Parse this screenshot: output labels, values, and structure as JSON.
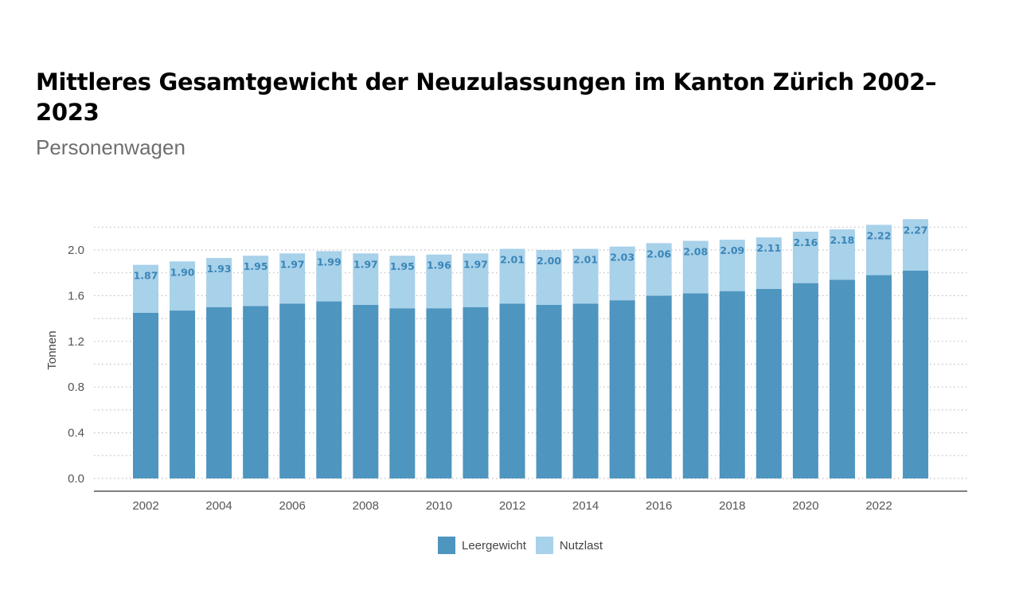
{
  "header": {
    "title": "Mittleres Gesamtgewicht der Neuzulassungen im Kanton Zürich 2002–2023",
    "subtitle": "Personenwagen"
  },
  "colors": {
    "leergewicht": "#4e95bf",
    "nutzlast": "#a8d1ea",
    "label": "#3a86b8",
    "grid": "#bdbdbd",
    "axis": "#555555"
  },
  "chart_data": {
    "type": "bar",
    "stacked": true,
    "title": "Mittleres Gesamtgewicht der Neuzulassungen im Kanton Zürich 2002–2023",
    "subtitle": "Personenwagen",
    "xlabel": "",
    "ylabel": "Tonnen",
    "ylim": [
      0,
      2.2
    ],
    "yticks": [
      0.0,
      0.4,
      0.8,
      1.2,
      1.6,
      2.0
    ],
    "ytick_labels": [
      "0.0",
      "0.4",
      "0.8",
      "1.2",
      "1.6",
      "2.0"
    ],
    "xtick_labels": [
      "2002",
      "2004",
      "2006",
      "2008",
      "2010",
      "2012",
      "2014",
      "2016",
      "2018",
      "2020",
      "2022"
    ],
    "grid": true,
    "legend_position": "bottom-center",
    "categories": [
      2002,
      2003,
      2004,
      2005,
      2006,
      2007,
      2008,
      2009,
      2010,
      2011,
      2012,
      2013,
      2014,
      2015,
      2016,
      2017,
      2018,
      2019,
      2020,
      2021,
      2022,
      2023
    ],
    "series": [
      {
        "name": "Leergewicht",
        "values": [
          1.45,
          1.47,
          1.5,
          1.51,
          1.53,
          1.55,
          1.52,
          1.49,
          1.49,
          1.5,
          1.53,
          1.52,
          1.53,
          1.56,
          1.6,
          1.62,
          1.64,
          1.66,
          1.71,
          1.74,
          1.78,
          1.82
        ]
      },
      {
        "name": "Nutzlast",
        "values": [
          0.42,
          0.43,
          0.43,
          0.44,
          0.44,
          0.44,
          0.45,
          0.46,
          0.47,
          0.47,
          0.48,
          0.48,
          0.48,
          0.47,
          0.46,
          0.46,
          0.45,
          0.45,
          0.45,
          0.44,
          0.44,
          0.45
        ]
      }
    ],
    "total_labels": [
      "1.87",
      "1.90",
      "1.93",
      "1.95",
      "1.97",
      "1.99",
      "1.97",
      "1.95",
      "1.96",
      "1.97",
      "2.01",
      "2.00",
      "2.01",
      "2.03",
      "2.06",
      "2.08",
      "2.09",
      "2.11",
      "2.16",
      "2.18",
      "2.22",
      "2.27"
    ]
  },
  "legend": {
    "leergewicht_label": "Leergewicht",
    "nutzlast_label": "Nutzlast"
  }
}
